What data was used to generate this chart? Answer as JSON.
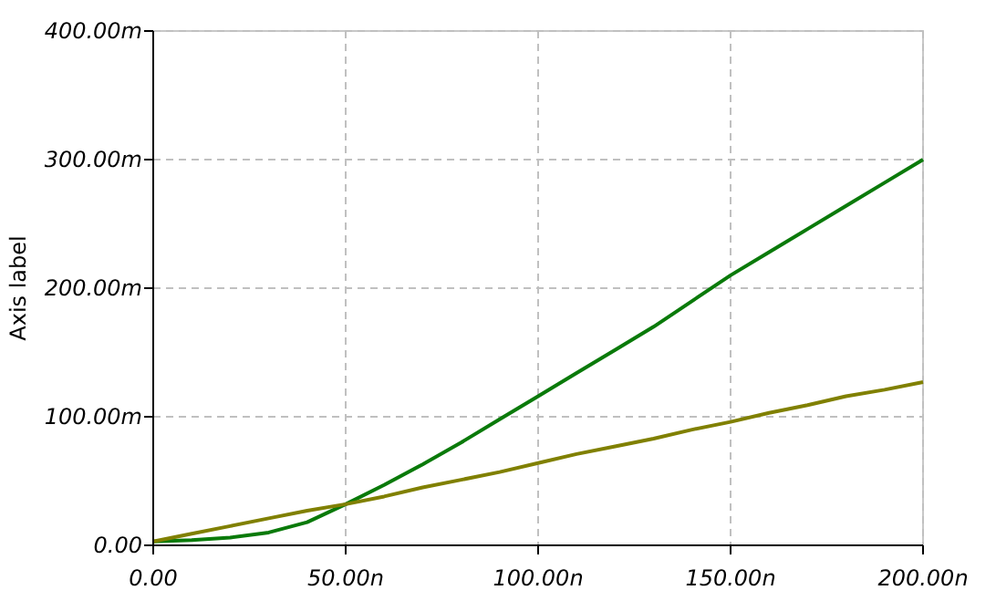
{
  "chart_data": {
    "type": "line",
    "ylabel": "Axis label",
    "xlim": [
      0,
      200
    ],
    "ylim": [
      0,
      400
    ],
    "xticks": [
      {
        "value": 0,
        "label": "0.00"
      },
      {
        "value": 50,
        "label": "50.00n"
      },
      {
        "value": 100,
        "label": "100.00n"
      },
      {
        "value": 150,
        "label": "150.00n"
      },
      {
        "value": 200,
        "label": "200.00n"
      }
    ],
    "yticks": [
      {
        "value": 0,
        "label": "0.00"
      },
      {
        "value": 100,
        "label": "100.00m"
      },
      {
        "value": 200,
        "label": "200.00m"
      },
      {
        "value": 300,
        "label": "300.00m"
      },
      {
        "value": 400,
        "label": "400.00m"
      }
    ],
    "grid": true,
    "marker": "none",
    "line_style": "solid",
    "x": [
      0,
      10,
      20,
      30,
      40,
      50,
      60,
      70,
      80,
      90,
      100,
      110,
      120,
      130,
      140,
      150,
      160,
      170,
      180,
      190,
      200
    ],
    "series": [
      {
        "color": "#0a7a0a",
        "values": [
          3,
          4,
          6,
          10,
          18,
          32,
          47,
          63,
          80,
          98,
          116,
          134,
          152,
          170,
          190,
          210,
          228,
          246,
          264,
          282,
          300
        ]
      },
      {
        "color": "#808000",
        "values": [
          3,
          9,
          15,
          21,
          27,
          32,
          38,
          45,
          51,
          57,
          64,
          71,
          77,
          83,
          90,
          96,
          103,
          109,
          116,
          121,
          127
        ]
      }
    ]
  }
}
